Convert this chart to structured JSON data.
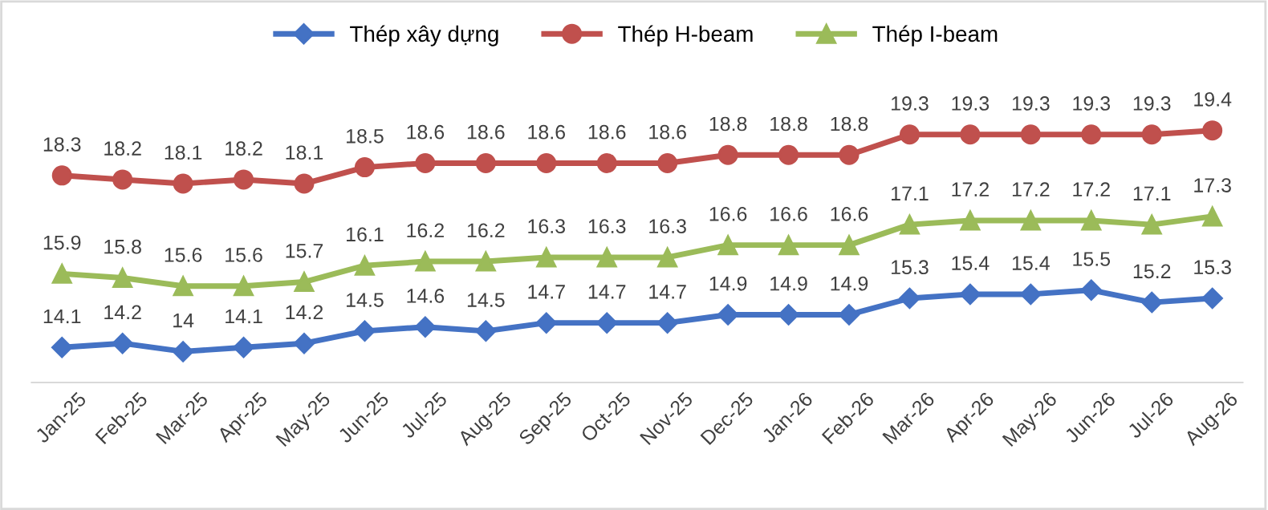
{
  "chart_data": {
    "type": "line",
    "categories": [
      "Jan-25",
      "Feb-25",
      "Mar-25",
      "Apr-25",
      "May-25",
      "Jun-25",
      "Jul-25",
      "Aug-25",
      "Sep-25",
      "Oct-25",
      "Nov-25",
      "Dec-25",
      "Jan-26",
      "Feb-26",
      "Mar-26",
      "Apr-26",
      "May-26",
      "Jun-26",
      "Jul-26",
      "Aug-26"
    ],
    "series": [
      {
        "name": "Thép xây dựng",
        "color": "#4472c4",
        "marker": "diamond",
        "values": [
          14.1,
          14.2,
          14,
          14.1,
          14.2,
          14.5,
          14.6,
          14.5,
          14.7,
          14.7,
          14.7,
          14.9,
          14.9,
          14.9,
          15.3,
          15.4,
          15.4,
          15.5,
          15.2,
          15.3
        ]
      },
      {
        "name": "Thép H-beam",
        "color": "#c0504d",
        "marker": "circle",
        "values": [
          18.3,
          18.2,
          18.1,
          18.2,
          18.1,
          18.5,
          18.6,
          18.6,
          18.6,
          18.6,
          18.6,
          18.8,
          18.8,
          18.8,
          19.3,
          19.3,
          19.3,
          19.3,
          19.3,
          19.4
        ]
      },
      {
        "name": "Thép I-beam",
        "color": "#9bbb59",
        "marker": "triangle",
        "values": [
          15.9,
          15.8,
          15.6,
          15.6,
          15.7,
          16.1,
          16.2,
          16.2,
          16.3,
          16.3,
          16.3,
          16.6,
          16.6,
          16.6,
          17.1,
          17.2,
          17.2,
          17.2,
          17.1,
          17.3
        ]
      }
    ],
    "tick_labels": "x",
    "data_labels": true,
    "legend": "top",
    "grid": false,
    "line_style": "solid"
  }
}
